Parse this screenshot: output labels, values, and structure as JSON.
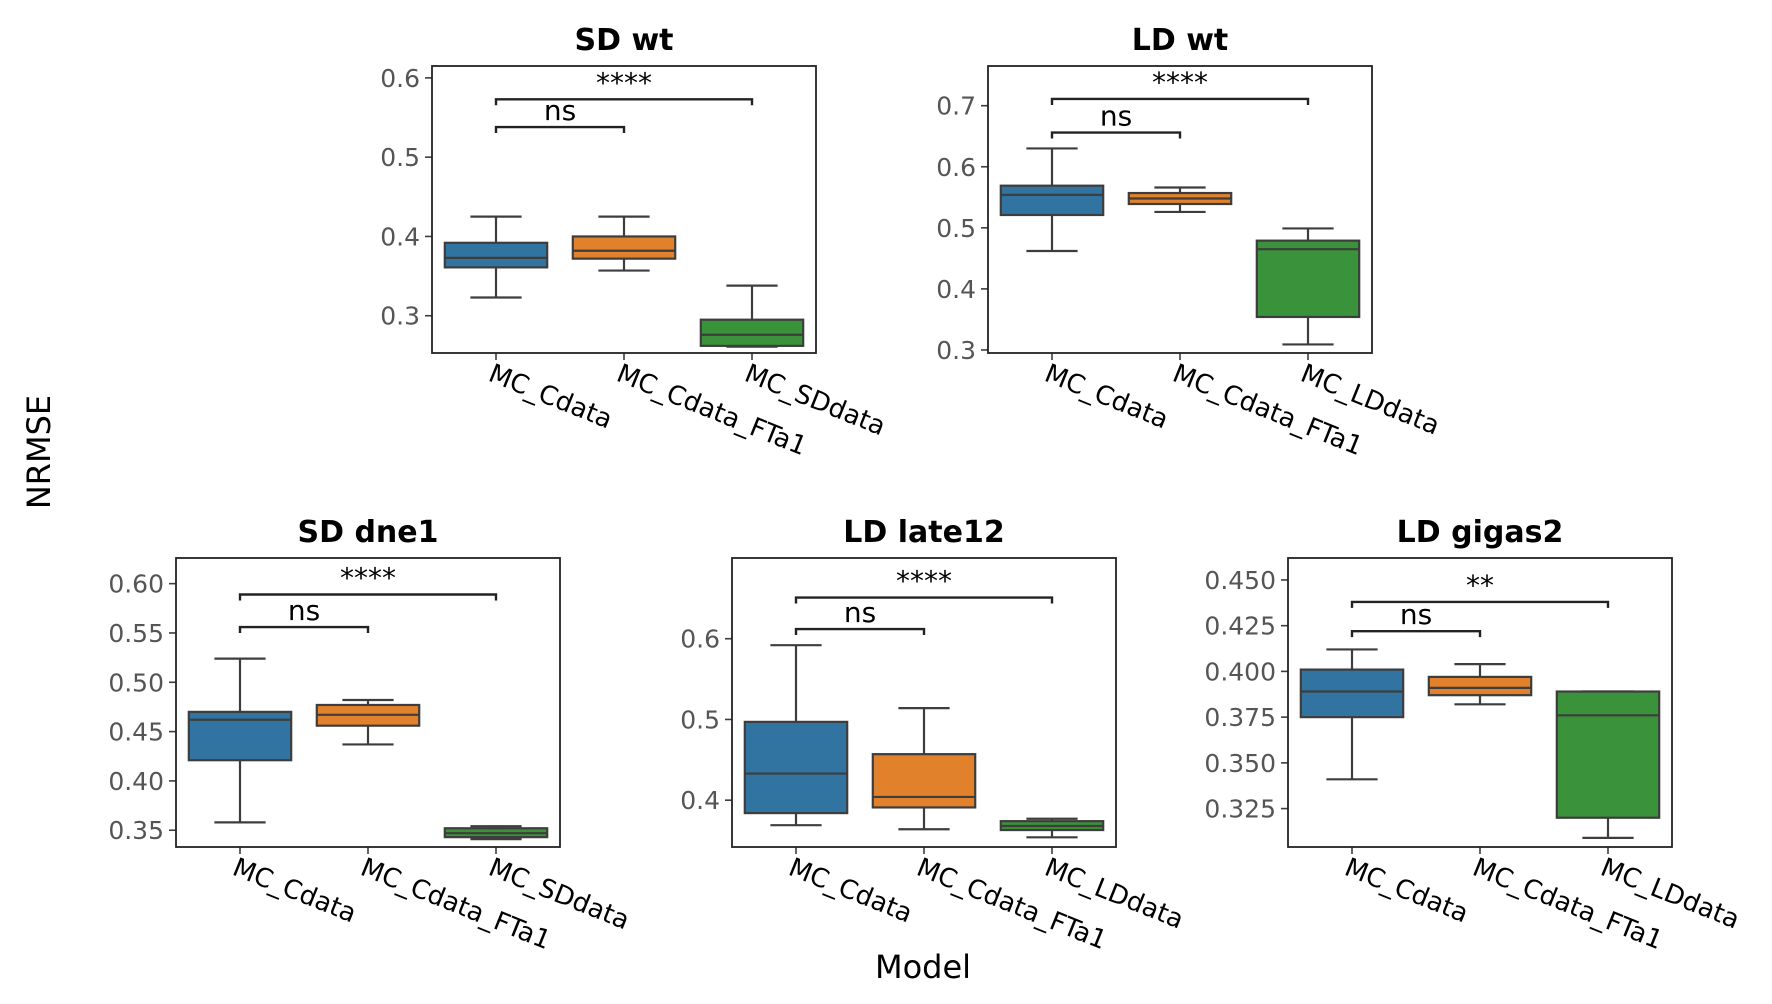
{
  "figure": {
    "xlabel": "Model",
    "ylabel": "NRMSE"
  },
  "colors": {
    "MC_Cdata": "#3274a1",
    "MC_Cdata_FTa1": "#e1812c",
    "MC_SDdata": "#3a923a",
    "MC_LDdata": "#3a923a",
    "line": "#3d3d3d"
  },
  "chart_data": [
    {
      "type": "box",
      "title": "SD wt",
      "categories": [
        "MC_Cdata",
        "MC_Cdata_FTa1",
        "MC_SDdata"
      ],
      "ylim": [
        0.253,
        0.615
      ],
      "yticks": [
        0.3,
        0.4,
        0.5,
        0.6
      ],
      "ytick_labels": [
        "0.3",
        "0.4",
        "0.5",
        "0.6"
      ],
      "boxes": [
        {
          "whisker_low": 0.323,
          "q1": 0.361,
          "median": 0.373,
          "q3": 0.392,
          "whisker_high": 0.425
        },
        {
          "whisker_low": 0.357,
          "q1": 0.372,
          "median": 0.382,
          "q3": 0.4,
          "whisker_high": 0.425
        },
        {
          "whisker_low": 0.261,
          "q1": 0.262,
          "median": 0.276,
          "q3": 0.295,
          "whisker_high": 0.338
        }
      ],
      "annotations": [
        {
          "from": 0,
          "to": 1,
          "y": 0.538,
          "label": "ns"
        },
        {
          "from": 0,
          "to": 2,
          "y": 0.573,
          "label": "****"
        }
      ]
    },
    {
      "type": "box",
      "title": "LD wt",
      "categories": [
        "MC_Cdata",
        "MC_Cdata_FTa1",
        "MC_LDdata"
      ],
      "ylim": [
        0.295,
        0.765
      ],
      "yticks": [
        0.3,
        0.4,
        0.5,
        0.6,
        0.7
      ],
      "ytick_labels": [
        "0.3",
        "0.4",
        "0.5",
        "0.6",
        "0.7"
      ],
      "boxes": [
        {
          "whisker_low": 0.462,
          "q1": 0.521,
          "median": 0.554,
          "q3": 0.569,
          "whisker_high": 0.63
        },
        {
          "whisker_low": 0.526,
          "q1": 0.539,
          "median": 0.548,
          "q3": 0.557,
          "whisker_high": 0.566
        },
        {
          "whisker_low": 0.309,
          "q1": 0.354,
          "median": 0.465,
          "q3": 0.479,
          "whisker_high": 0.499
        }
      ],
      "annotations": [
        {
          "from": 0,
          "to": 1,
          "y": 0.656,
          "label": "ns"
        },
        {
          "from": 0,
          "to": 2,
          "y": 0.711,
          "label": "****"
        }
      ]
    },
    {
      "type": "box",
      "title": "SD dne1",
      "categories": [
        "MC_Cdata",
        "MC_Cdata_FTa1",
        "MC_SDdata"
      ],
      "ylim": [
        0.333,
        0.626
      ],
      "yticks": [
        0.35,
        0.4,
        0.45,
        0.5,
        0.55,
        0.6
      ],
      "ytick_labels": [
        "0.35",
        "0.40",
        "0.45",
        "0.50",
        "0.55",
        "0.60"
      ],
      "boxes": [
        {
          "whisker_low": 0.358,
          "q1": 0.421,
          "median": 0.462,
          "q3": 0.47,
          "whisker_high": 0.524
        },
        {
          "whisker_low": 0.437,
          "q1": 0.456,
          "median": 0.467,
          "q3": 0.477,
          "whisker_high": 0.482
        },
        {
          "whisker_low": 0.341,
          "q1": 0.343,
          "median": 0.347,
          "q3": 0.352,
          "whisker_high": 0.354
        }
      ],
      "annotations": [
        {
          "from": 0,
          "to": 1,
          "y": 0.556,
          "label": "ns"
        },
        {
          "from": 0,
          "to": 2,
          "y": 0.589,
          "label": "****"
        }
      ]
    },
    {
      "type": "box",
      "title": "LD late12",
      "categories": [
        "MC_Cdata",
        "MC_Cdata_FTa1",
        "MC_LDdata"
      ],
      "ylim": [
        0.342,
        0.7
      ],
      "yticks": [
        0.4,
        0.5,
        0.6
      ],
      "ytick_labels": [
        "0.4",
        "0.5",
        "0.6"
      ],
      "boxes": [
        {
          "whisker_low": 0.369,
          "q1": 0.384,
          "median": 0.433,
          "q3": 0.497,
          "whisker_high": 0.592
        },
        {
          "whisker_low": 0.364,
          "q1": 0.391,
          "median": 0.404,
          "q3": 0.457,
          "whisker_high": 0.514
        },
        {
          "whisker_low": 0.354,
          "q1": 0.363,
          "median": 0.368,
          "q3": 0.374,
          "whisker_high": 0.377
        }
      ],
      "annotations": [
        {
          "from": 0,
          "to": 1,
          "y": 0.612,
          "label": "ns"
        },
        {
          "from": 0,
          "to": 2,
          "y": 0.651,
          "label": "****"
        }
      ]
    },
    {
      "type": "box",
      "title": "LD gigas2",
      "categories": [
        "MC_Cdata",
        "MC_Cdata_FTa1",
        "MC_LDdata"
      ],
      "ylim": [
        0.304,
        0.462
      ],
      "yticks": [
        0.325,
        0.35,
        0.375,
        0.4,
        0.425,
        0.45
      ],
      "ytick_labels": [
        "0.325",
        "0.350",
        "0.375",
        "0.400",
        "0.425",
        "0.450"
      ],
      "boxes": [
        {
          "whisker_low": 0.341,
          "q1": 0.375,
          "median": 0.389,
          "q3": 0.401,
          "whisker_high": 0.412
        },
        {
          "whisker_low": 0.382,
          "q1": 0.387,
          "median": 0.391,
          "q3": 0.397,
          "whisker_high": 0.404
        },
        {
          "whisker_low": 0.309,
          "q1": 0.32,
          "median": 0.376,
          "q3": 0.389,
          "whisker_high": 0.389
        }
      ],
      "annotations": [
        {
          "from": 0,
          "to": 1,
          "y": 0.422,
          "label": "ns"
        },
        {
          "from": 0,
          "to": 2,
          "y": 0.438,
          "label": "**"
        }
      ]
    }
  ]
}
